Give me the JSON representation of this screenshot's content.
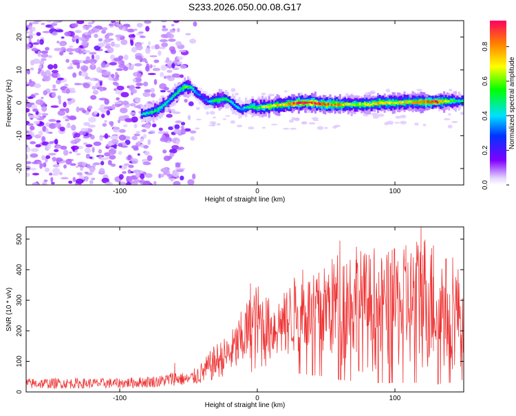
{
  "title": "S233.2026.050.00.08.G17",
  "chart_data": [
    {
      "type": "heatmap",
      "xlabel": "Height of straight line (km)",
      "ylabel": "Frequency (Hz)",
      "xlim": [
        -168,
        150
      ],
      "ylim": [
        -25,
        25
      ],
      "xticks": [
        -100,
        0,
        100
      ],
      "xtick_labels": [
        "-100",
        "0",
        "100"
      ],
      "yticks": [
        -20,
        -10,
        0,
        10,
        20
      ],
      "ytick_labels": [
        "-20",
        "-10",
        "0",
        "10",
        "20"
      ],
      "colorbar": {
        "label": "Normalized spectral amplitude",
        "range": [
          0,
          0.95
        ],
        "ticks": [
          0,
          0.2,
          0.4,
          0.6,
          0.8
        ],
        "tick_labels": [
          "0.0",
          "0.2",
          "0.4",
          "0.6",
          "0.8"
        ]
      },
      "ridge": {
        "x": [
          -84,
          -78,
          -72,
          -66,
          -60,
          -56,
          -52,
          -48,
          -44,
          -40,
          -36,
          -32,
          -28,
          -24,
          -20,
          -16,
          -12,
          -8,
          -4,
          0,
          10,
          20,
          30,
          40,
          50,
          60,
          70,
          80,
          90,
          100,
          110,
          120,
          130,
          140,
          150
        ],
        "y": [
          -3.5,
          -3,
          -2,
          0,
          2.5,
          4,
          5,
          4.5,
          3,
          1.5,
          0.5,
          0.5,
          0.8,
          1.2,
          0.5,
          -1,
          -2,
          -1.5,
          -1,
          -1.5,
          -1,
          -0.5,
          0,
          0,
          -0.5,
          -0.5,
          -0.5,
          -0.5,
          0,
          0,
          0.2,
          0.2,
          0.3,
          0.5,
          0.5
        ],
        "amplitude": [
          0.4,
          0.45,
          0.5,
          0.45,
          0.45,
          0.5,
          0.6,
          0.45,
          0.35,
          0.3,
          0.35,
          0.5,
          0.55,
          0.5,
          0.45,
          0.4,
          0.35,
          0.45,
          0.5,
          0.55,
          0.7,
          0.75,
          0.9,
          0.9,
          0.85,
          0.8,
          0.6,
          0.7,
          0.75,
          0.7,
          0.7,
          0.8,
          0.9,
          0.6,
          0.4
        ]
      },
      "noise_region_x": [
        -168,
        -45
      ]
    },
    {
      "type": "line",
      "xlabel": "Height of straight line (km)",
      "ylabel": "SNR (10 * v/v)",
      "xlim": [
        -168,
        150
      ],
      "ylim": [
        0,
        540
      ],
      "xticks": [
        -100,
        0,
        100
      ],
      "xtick_labels": [
        "-100",
        "0",
        "100"
      ],
      "yticks": [
        0,
        100,
        200,
        300,
        400,
        500
      ],
      "ytick_labels": [
        "0",
        "100",
        "200",
        "300",
        "400",
        "500"
      ],
      "series": [
        {
          "color": "#ee3333",
          "envelope_x": [
            -168,
            -100,
            -70,
            -60,
            -50,
            -40,
            -30,
            -20,
            -10,
            0,
            10,
            20,
            30,
            40,
            50,
            60,
            70,
            80,
            90,
            100,
            110,
            120,
            130,
            140,
            150
          ],
          "envelope_low": [
            10,
            12,
            15,
            20,
            20,
            25,
            40,
            60,
            70,
            50,
            90,
            100,
            120,
            110,
            100,
            80,
            70,
            60,
            60,
            60,
            60,
            60,
            50,
            60,
            80
          ],
          "envelope_high": [
            45,
            45,
            55,
            70,
            60,
            100,
            160,
            190,
            280,
            360,
            300,
            330,
            400,
            380,
            420,
            470,
            480,
            460,
            450,
            470,
            470,
            540,
            470,
            440,
            400
          ],
          "peaks": [
            [
              -60,
              95
            ],
            [
              -5,
              355
            ],
            [
              33,
              400
            ],
            [
              60,
              495
            ],
            [
              72,
              475
            ],
            [
              85,
              470
            ],
            [
              98,
              465
            ],
            [
              108,
              480
            ],
            [
              119,
              540
            ],
            [
              128,
              480
            ],
            [
              142,
              440
            ]
          ]
        }
      ]
    }
  ]
}
